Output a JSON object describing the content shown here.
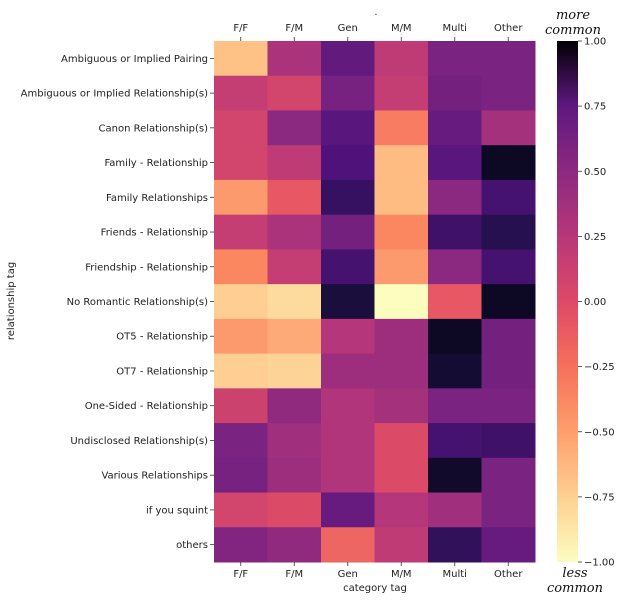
{
  "chart_data": {
    "type": "heatmap",
    "xlabel": "category tag",
    "ylabel": "relationship tag",
    "top_label": ".",
    "columns": [
      "F/F",
      "F/M",
      "Gen",
      "M/M",
      "Multi",
      "Other"
    ],
    "rows": [
      "Ambiguous or Implied Pairing",
      "Ambiguous or Implied Relationship(s)",
      "Canon Relationship(s)",
      "Family - Relationship",
      "Family Relationships",
      "Friends - Relationship",
      "Friendship - Relationship",
      "No Romantic Relationship(s)",
      "OT5 - Relationship",
      "OT7 - Relationship",
      "One-Sided - Relationship",
      "Undisclosed Relationship(s)",
      "Various Relationships",
      "if you squint",
      "others"
    ],
    "values": [
      [
        -0.75,
        0.05,
        0.4,
        -0.05,
        0.28,
        0.28
      ],
      [
        -0.08,
        -0.15,
        0.3,
        -0.08,
        0.32,
        0.28
      ],
      [
        -0.15,
        0.2,
        0.45,
        -0.45,
        0.38,
        0.08
      ],
      [
        -0.15,
        -0.05,
        0.5,
        -0.72,
        0.45,
        0.88
      ],
      [
        -0.58,
        -0.28,
        0.62,
        -0.72,
        0.2,
        0.55
      ],
      [
        -0.08,
        0.05,
        0.32,
        -0.5,
        0.58,
        0.7
      ],
      [
        -0.5,
        -0.08,
        0.55,
        -0.58,
        0.2,
        0.55
      ],
      [
        -0.8,
        -0.85,
        0.78,
        -1.0,
        -0.28,
        0.88
      ],
      [
        -0.58,
        -0.65,
        0.0,
        0.12,
        0.88,
        0.32
      ],
      [
        -0.8,
        -0.82,
        0.12,
        0.12,
        0.82,
        0.32
      ],
      [
        -0.12,
        0.18,
        0.02,
        0.08,
        0.28,
        0.28
      ],
      [
        0.28,
        0.1,
        0.02,
        -0.2,
        0.55,
        0.58
      ],
      [
        0.3,
        0.12,
        0.02,
        -0.2,
        0.85,
        0.28
      ],
      [
        -0.15,
        -0.2,
        0.38,
        0.0,
        0.1,
        0.28
      ],
      [
        0.25,
        0.18,
        -0.35,
        -0.05,
        0.65,
        0.38
      ]
    ],
    "zlim": [
      -1.0,
      1.0
    ],
    "colormap": "magma",
    "colorbar_ticks": [
      "1.00",
      "0.75",
      "0.50",
      "0.25",
      "0.00",
      "−0.25",
      "−0.50",
      "−0.75",
      "−1.00"
    ],
    "colorbar_top_annotation": [
      "more",
      "common"
    ],
    "colorbar_bottom_annotation": [
      "less",
      "common"
    ]
  }
}
